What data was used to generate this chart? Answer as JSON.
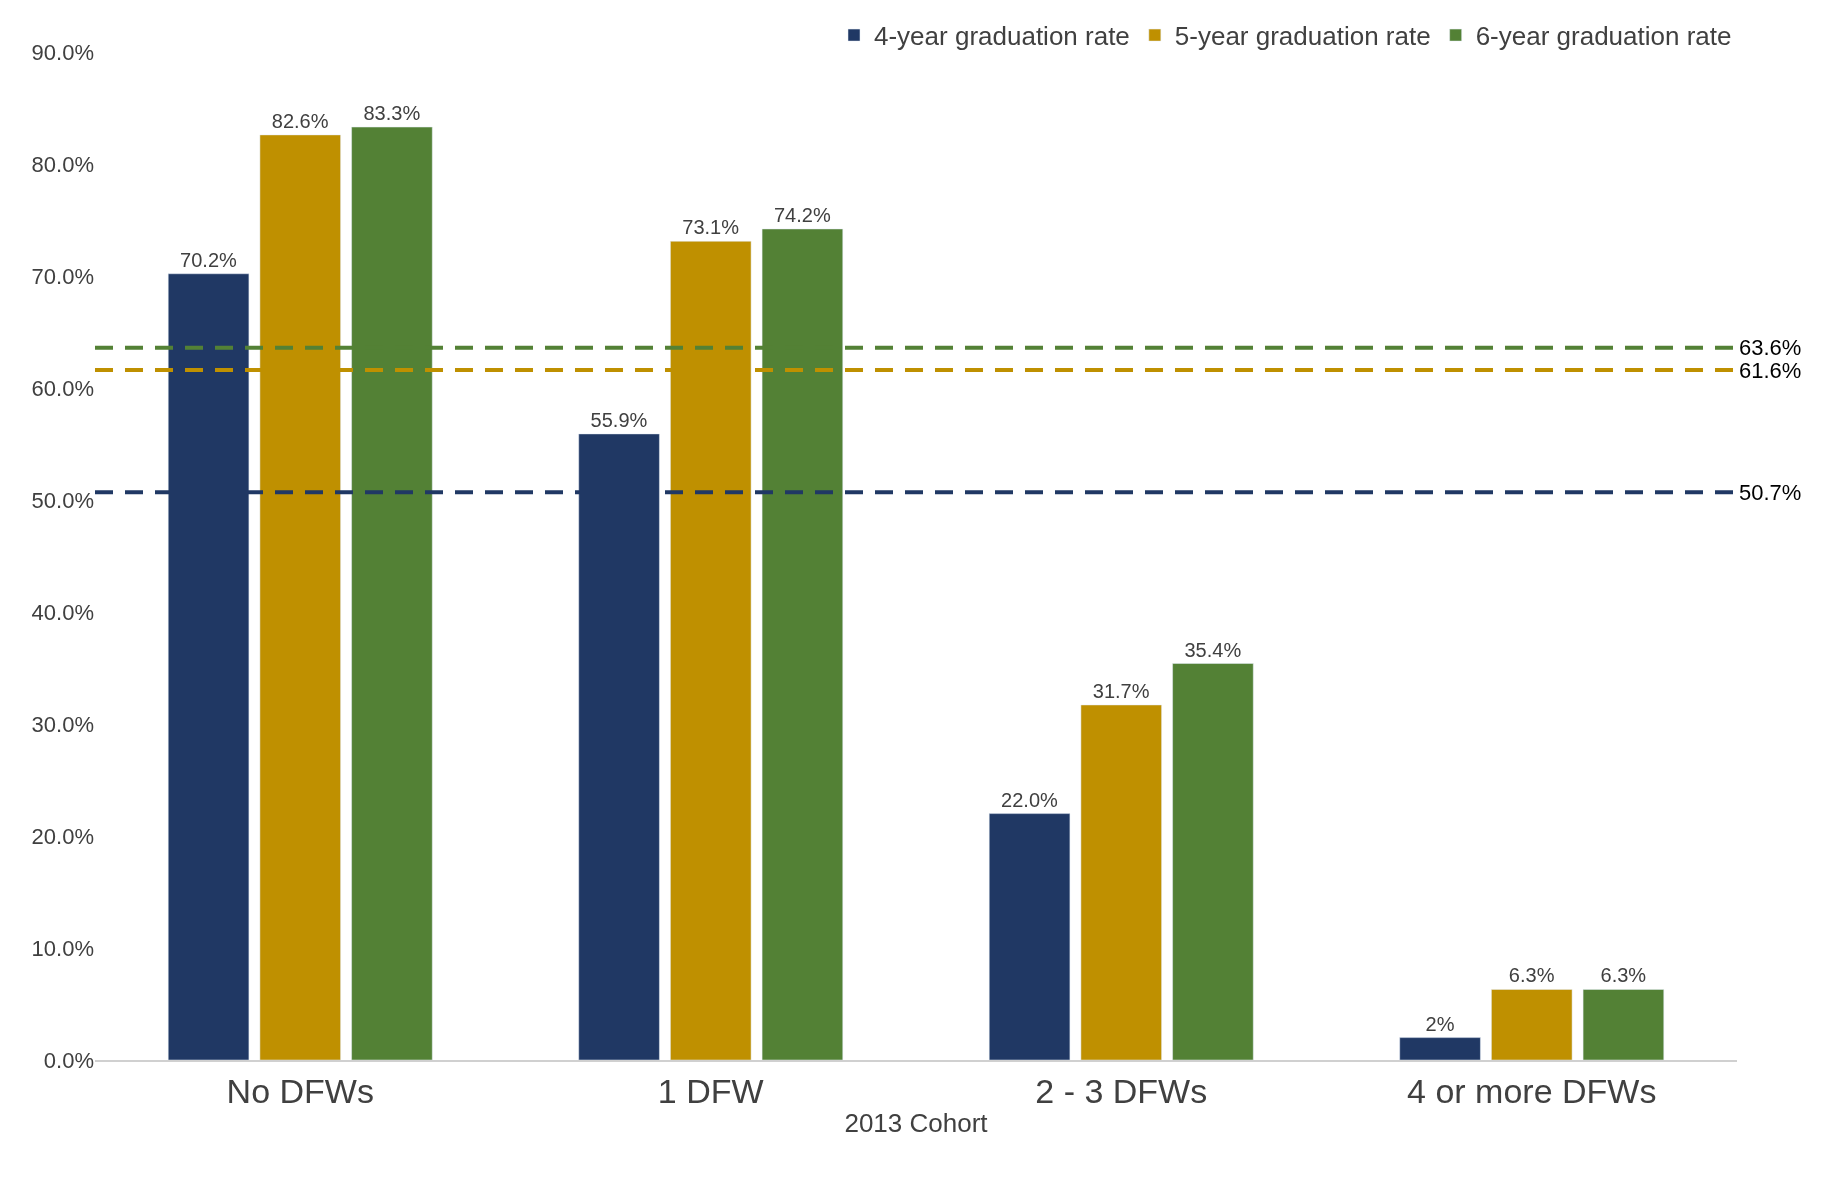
{
  "chart_data": {
    "type": "bar",
    "xlabel": "2013 Cohort",
    "categories": [
      "No DFWs",
      "1 DFW",
      "2 - 3 DFWs",
      "4 or more DFWs"
    ],
    "series": [
      {
        "name": "4-year graduation rate",
        "color": "#203864",
        "values": [
          70.2,
          55.9,
          22.0,
          2
        ],
        "value_labels": [
          "70.2%",
          "55.9%",
          "22.0%",
          "2%"
        ]
      },
      {
        "name": "5-year graduation rate",
        "color": "#bf9000",
        "values": [
          82.6,
          73.1,
          31.7,
          6.3
        ],
        "value_labels": [
          "82.6%",
          "73.1%",
          "31.7%",
          "6.3%"
        ]
      },
      {
        "name": "6-year graduation rate",
        "color": "#538135",
        "values": [
          83.3,
          74.2,
          35.4,
          6.3
        ],
        "value_labels": [
          "83.3%",
          "74.2%",
          "35.4%",
          "6.3%"
        ]
      }
    ],
    "ylim": [
      0,
      90
    ],
    "yticks": [
      {
        "value": 0,
        "label": "0.0%"
      },
      {
        "value": 10,
        "label": "10.0%"
      },
      {
        "value": 20,
        "label": "20.0%"
      },
      {
        "value": 30,
        "label": "30.0%"
      },
      {
        "value": 40,
        "label": "40.0%"
      },
      {
        "value": 50,
        "label": "50.0%"
      },
      {
        "value": 60,
        "label": "60.0%"
      },
      {
        "value": 70,
        "label": "70.0%"
      },
      {
        "value": 80,
        "label": "80.0%"
      },
      {
        "value": 90,
        "label": "90.0%"
      }
    ],
    "ref_lines": [
      {
        "axis": "y",
        "value": 63.6,
        "label": "63.6%",
        "color": "#538135",
        "line_style": "dashed"
      },
      {
        "axis": "y",
        "value": 61.6,
        "label": "61.6%",
        "color": "#bf9000",
        "line_style": "dashed"
      },
      {
        "axis": "y",
        "value": 50.7,
        "label": "50.7%",
        "color": "#203864",
        "line_style": "dashed"
      }
    ],
    "legend": "top right"
  }
}
